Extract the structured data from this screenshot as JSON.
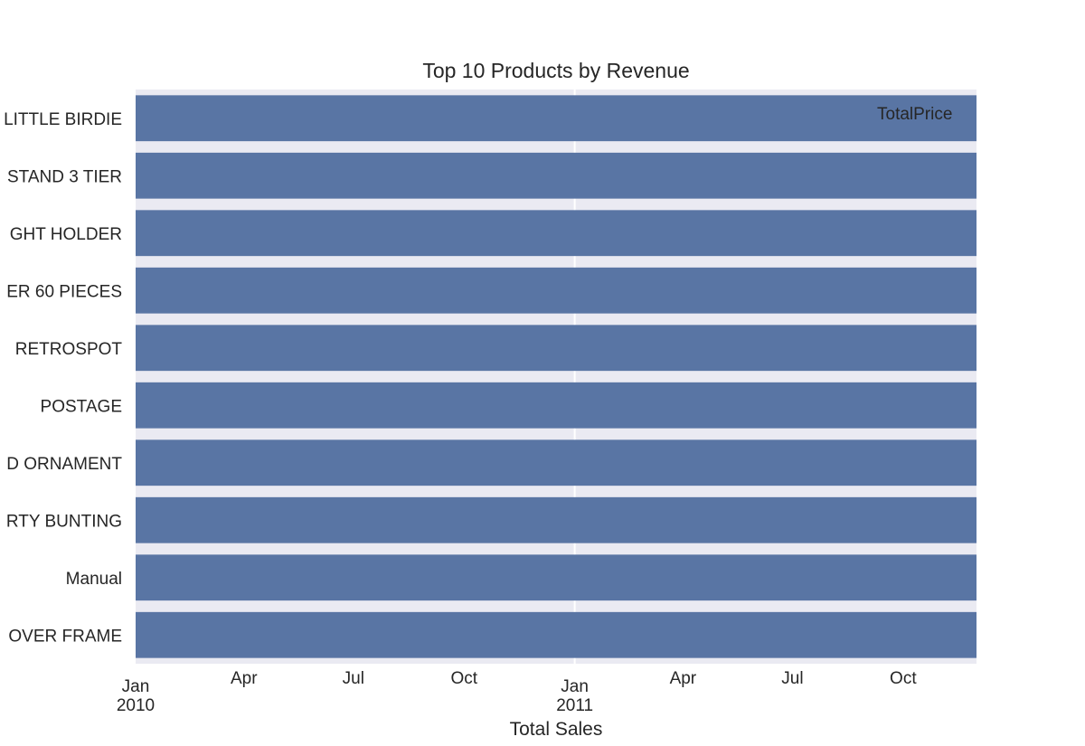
{
  "chart_data": {
    "type": "bar",
    "orientation": "horizontal",
    "title": "Top 10 Products by Revenue",
    "xlabel": "Total Sales",
    "ylabel": "",
    "categories": [
      "LITTLE BIRDIE",
      "STAND 3 TIER",
      "GHT HOLDER",
      "ER 60 PIECES",
      "RETROSPOT",
      "POSTAGE",
      "D ORNAMENT",
      "RTY BUNTING",
      "Manual",
      "OVER FRAME"
    ],
    "series": [
      {
        "name": "TotalPrice",
        "color": "#5975a4"
      }
    ],
    "x_axis": {
      "scale": "date",
      "range": [
        "2010-01-01",
        "2011-12-01"
      ],
      "ticks": [
        {
          "date": "2010-01-01",
          "label": "Jan",
          "year": "2010"
        },
        {
          "date": "2010-04-01",
          "label": "Apr",
          "year": ""
        },
        {
          "date": "2010-07-01",
          "label": "Jul",
          "year": ""
        },
        {
          "date": "2010-10-01",
          "label": "Oct",
          "year": ""
        },
        {
          "date": "2011-01-01",
          "label": "Jan",
          "year": "2011"
        },
        {
          "date": "2011-04-01",
          "label": "Apr",
          "year": ""
        },
        {
          "date": "2011-07-01",
          "label": "Jul",
          "year": ""
        },
        {
          "date": "2011-10-01",
          "label": "Oct",
          "year": ""
        }
      ]
    },
    "legend": {
      "position": "top-right",
      "entries": [
        "TotalPrice"
      ]
    },
    "grid": true,
    "colors": {
      "bar": "#5975a4",
      "plot_background": "#eaeaf2",
      "grid": "#ffffff",
      "text": "#262626"
    }
  }
}
